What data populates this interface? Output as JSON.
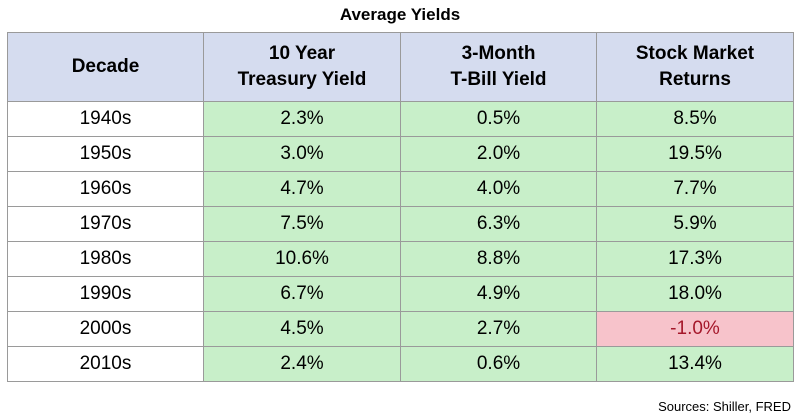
{
  "title": "Average Yields",
  "source": "Sources: Shiller, FRED",
  "colors": {
    "header_bg": "#d5dcef",
    "positive_cell_bg": "#c8efc9",
    "negative_cell_bg": "#f7c3cb",
    "negative_text": "#a5182b",
    "grid_border": "#9a9a9a"
  },
  "chart_data": {
    "type": "table",
    "title": "Average Yields",
    "columns": [
      "Decade",
      "10 Year Treasury Yield",
      "3-Month T-Bill Yield",
      "Stock Market Returns"
    ],
    "rows": [
      [
        "1940s",
        "2.3%",
        "0.5%",
        "8.5%"
      ],
      [
        "1950s",
        "3.0%",
        "2.0%",
        "19.5%"
      ],
      [
        "1960s",
        "4.7%",
        "4.0%",
        "7.7%"
      ],
      [
        "1970s",
        "7.5%",
        "6.3%",
        "5.9%"
      ],
      [
        "1980s",
        "10.6%",
        "8.8%",
        "17.3%"
      ],
      [
        "1990s",
        "6.7%",
        "4.9%",
        "18.0%"
      ],
      [
        "2000s",
        "4.5%",
        "2.7%",
        "-1.0%"
      ],
      [
        "2010s",
        "2.4%",
        "0.6%",
        "13.4%"
      ]
    ]
  }
}
